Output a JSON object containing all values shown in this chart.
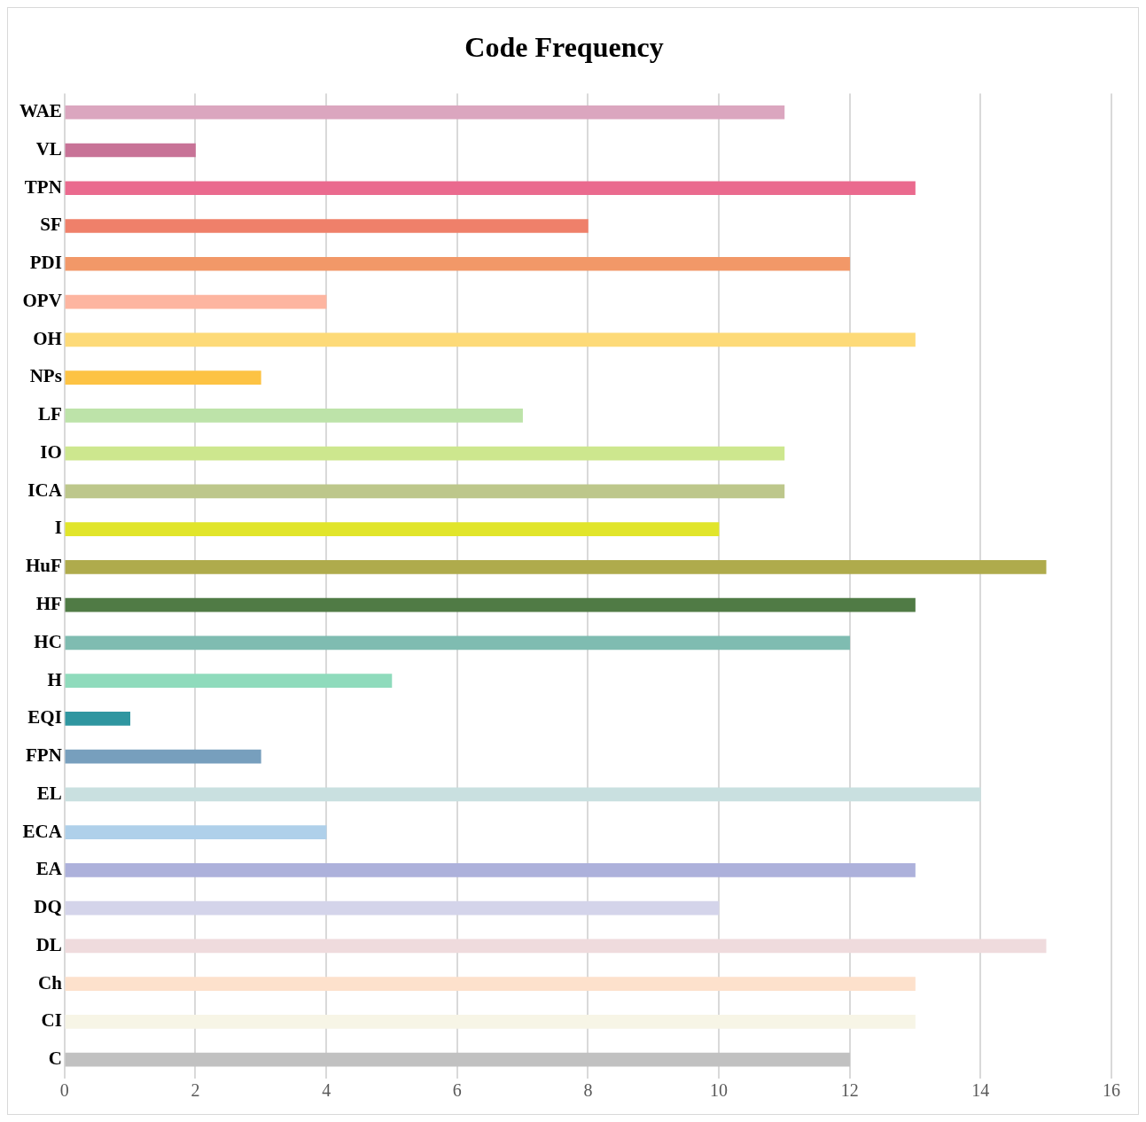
{
  "chart_data": {
    "type": "bar",
    "orientation": "horizontal",
    "title": "Code Frequency",
    "categories": [
      "WAE",
      "VL",
      "TPN",
      "SF",
      "PDI",
      "OPV",
      "OH",
      "NPs",
      "LF",
      "IO",
      "ICA",
      "I",
      "HuF",
      "HF",
      "HC",
      "H",
      "EQI",
      "FPN",
      "EL",
      "ECA",
      "EA",
      "DQ",
      "DL",
      "Ch",
      "CI",
      "C"
    ],
    "values": [
      11,
      2,
      13,
      8,
      12,
      4,
      13,
      3,
      7,
      11,
      11,
      10,
      15,
      13,
      12,
      5,
      1,
      3,
      14,
      4,
      13,
      10,
      15,
      13,
      13,
      12
    ],
    "colors": [
      "#dba6bf",
      "#c87397",
      "#ea6a8e",
      "#ef806a",
      "#f29868",
      "#fdb5a0",
      "#fdda78",
      "#fdc344",
      "#bde3a9",
      "#cde78e",
      "#bdc78b",
      "#e1e52b",
      "#afab4c",
      "#507b45",
      "#7fbcb1",
      "#8fdbbc",
      "#2f96a0",
      "#779fbd",
      "#c9e0e0",
      "#afd0ea",
      "#adb1db",
      "#d4d4ea",
      "#efdbdd",
      "#fde1cc",
      "#f7f5e6",
      "#c1c1c1"
    ],
    "xlim": [
      0,
      16
    ],
    "xticks": [
      0,
      2,
      4,
      6,
      8,
      10,
      12,
      14,
      16
    ],
    "grid": "x",
    "legend": false
  }
}
